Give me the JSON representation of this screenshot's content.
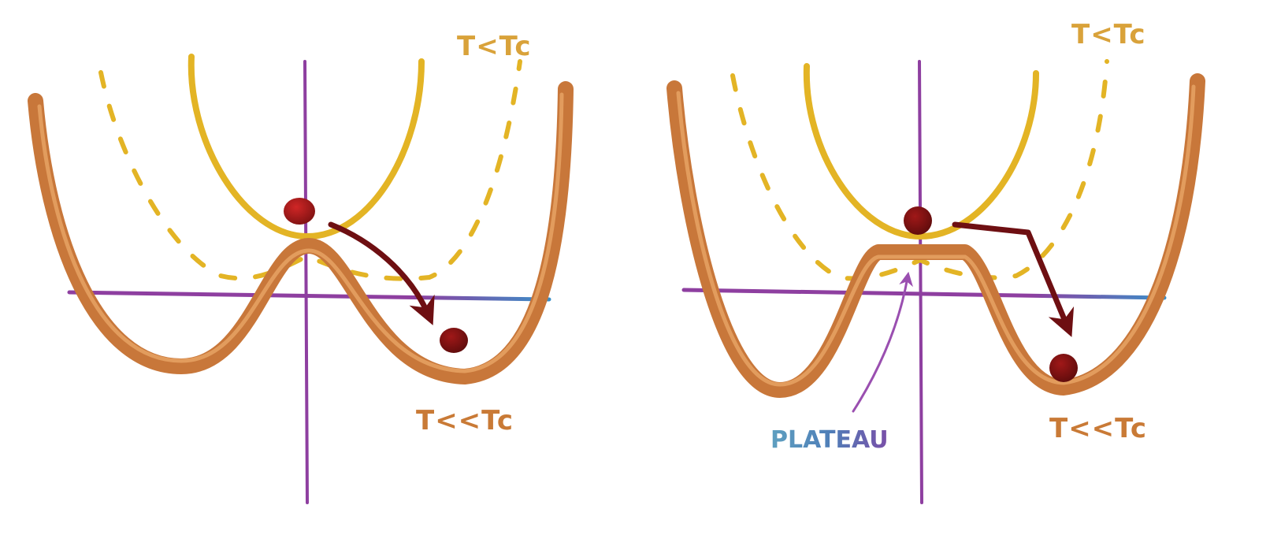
{
  "colors": {
    "axis_vertical": "#8e3fa0",
    "axis_horizontal": "#8e3fa0",
    "axis_horizontal_right_end": "#3a8fc8",
    "curve_high_temp": "#e3b425",
    "curve_dashed": "#e3b425",
    "curve_low_temp": "#c8773a",
    "curve_low_temp_highlight": "#e8a567",
    "ball_top": "#b81c1c",
    "ball_bottom": "#7e1212",
    "arrow": "#6e0f12",
    "plateau_arrow": "#9a4fb0",
    "plateau_text": "#5fa0c0",
    "plateau_text_end": "#7a4fa8"
  },
  "panels": [
    {
      "id": "left",
      "high_label": "T<Tc",
      "low_label": "T<<Tc",
      "has_plateau": false
    },
    {
      "id": "right",
      "high_label": "T<Tc",
      "low_label": "T<<Tc",
      "has_plateau": true,
      "plateau_label": "PLATEAU"
    }
  ]
}
